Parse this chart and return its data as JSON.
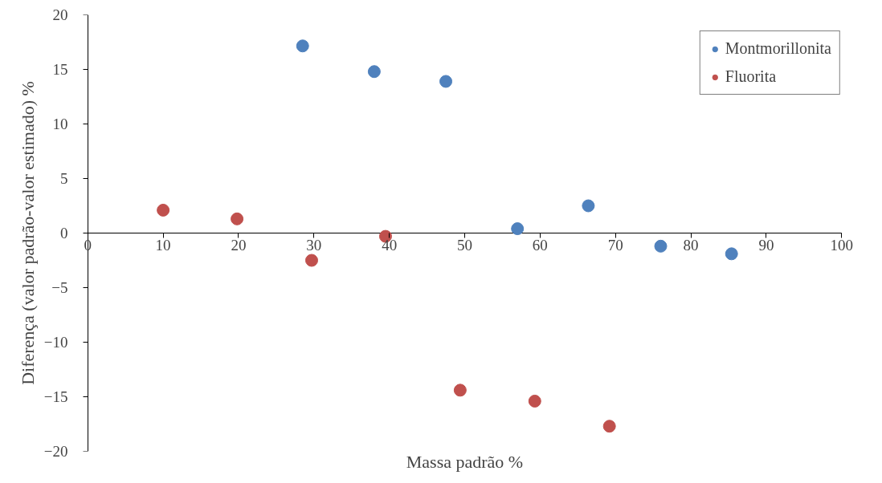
{
  "chart_data": {
    "type": "scatter",
    "xlabel": "Massa padrão %",
    "ylabel": "Diferença (valor padrão-valor estimado) %",
    "xlim": [
      0,
      100
    ],
    "xticks": [
      0,
      10,
      20,
      30,
      40,
      50,
      60,
      70,
      80,
      90,
      100
    ],
    "ylim": [
      -20,
      20
    ],
    "yticks": [
      -20,
      -15,
      -10,
      -5,
      0,
      5,
      10,
      15,
      20
    ],
    "grid": false,
    "legend": "top right",
    "marker": "circle",
    "series": [
      {
        "name": "Montmorillonita",
        "color": "#4f81bd",
        "x": [
          28.5,
          38.0,
          47.5,
          57.0,
          66.4,
          76.0,
          85.4
        ],
        "values": [
          17.15,
          14.8,
          13.9,
          0.4,
          2.5,
          -1.2,
          -1.9
        ]
      },
      {
        "name": "Fluorita",
        "color": "#c0504d",
        "x": [
          10.0,
          19.8,
          29.7,
          39.5,
          49.4,
          59.3,
          69.2
        ],
        "values": [
          2.1,
          1.3,
          -2.5,
          -0.3,
          -14.4,
          -15.4,
          -17.7
        ]
      }
    ]
  }
}
